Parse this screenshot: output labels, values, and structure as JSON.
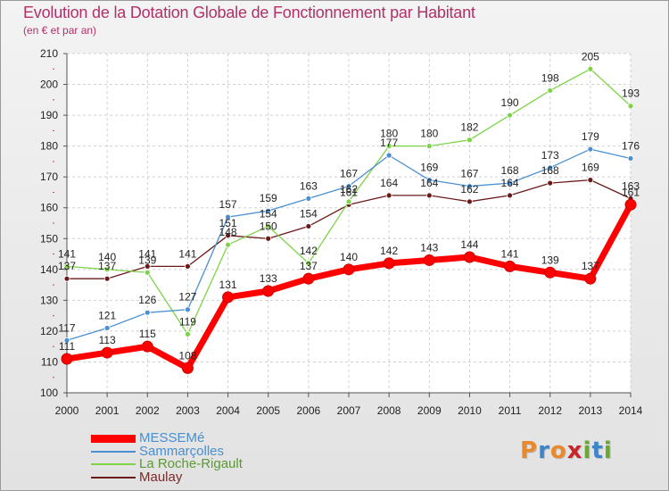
{
  "title": "Evolution de la Dotation Globale de Fonctionnement par Habitant",
  "subtitle": "(en € et par an)",
  "logo": {
    "text": "Proxiti",
    "letters": [
      "P",
      "r",
      "o",
      "x",
      "i",
      "t",
      "i"
    ],
    "colors": [
      "#e8892c",
      "#3a86c8",
      "#e8892c",
      "#c8242a",
      "#6aa830",
      "#3a86c8",
      "#6aa830"
    ]
  },
  "chart_data": {
    "type": "line",
    "categories": [
      "2000",
      "2001",
      "2002",
      "2003",
      "2004",
      "2005",
      "2006",
      "2007",
      "2008",
      "2009",
      "2010",
      "2011",
      "2012",
      "2013",
      "2014"
    ],
    "ylim": [
      100,
      210
    ],
    "yticks": [
      100,
      110,
      120,
      130,
      140,
      150,
      160,
      170,
      180,
      190,
      200,
      210
    ],
    "grid": true,
    "legend_position": "bottom-left",
    "series": [
      {
        "name": "MESSEMé",
        "color": "#ff0000",
        "values": [
          111,
          113,
          115,
          108,
          131,
          133,
          137,
          140,
          142,
          143,
          144,
          141,
          139,
          137,
          161
        ]
      },
      {
        "name": "Sammarçolles",
        "color": "#4a8fd0",
        "values": [
          117,
          121,
          126,
          127,
          157,
          159,
          163,
          167,
          177,
          169,
          167,
          168,
          173,
          179,
          176
        ]
      },
      {
        "name": "La Roche-Rigault",
        "color": "#7ed348",
        "values": [
          141,
          140,
          139,
          119,
          148,
          154,
          142,
          162,
          180,
          180,
          182,
          190,
          198,
          205,
          193
        ]
      },
      {
        "name": "Maulay",
        "color": "#6b1a1a",
        "values": [
          137,
          137,
          141,
          141,
          151,
          150,
          154,
          161,
          164,
          164,
          162,
          164,
          168,
          169,
          163
        ]
      }
    ]
  }
}
